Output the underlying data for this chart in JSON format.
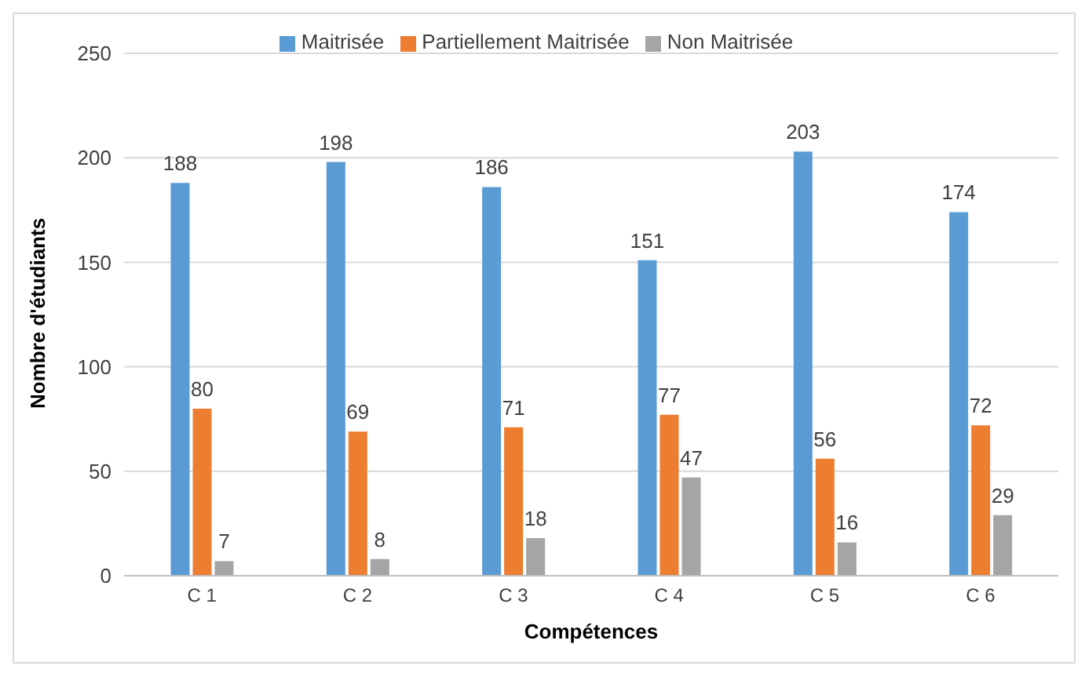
{
  "chart_data": {
    "type": "bar",
    "categories": [
      "C 1",
      "C 2",
      "C 3",
      "C 4",
      "C 5",
      "C 6"
    ],
    "series": [
      {
        "name": "Maitrisée",
        "color": "#5b9bd5",
        "values": [
          188,
          198,
          186,
          151,
          203,
          174
        ]
      },
      {
        "name": "Partiellement Maitrisée",
        "color": "#ed7d31",
        "values": [
          80,
          69,
          71,
          77,
          56,
          72
        ]
      },
      {
        "name": "Non Maitrisée",
        "color": "#a5a5a5",
        "values": [
          7,
          8,
          18,
          47,
          16,
          29
        ]
      }
    ],
    "xlabel": "Compétences",
    "ylabel": "Nombre d'étudiants",
    "ylim": [
      0,
      250
    ],
    "yticks": [
      0,
      50,
      100,
      150,
      200,
      250
    ],
    "grid": "y",
    "legend": "top",
    "data_labels": true
  }
}
